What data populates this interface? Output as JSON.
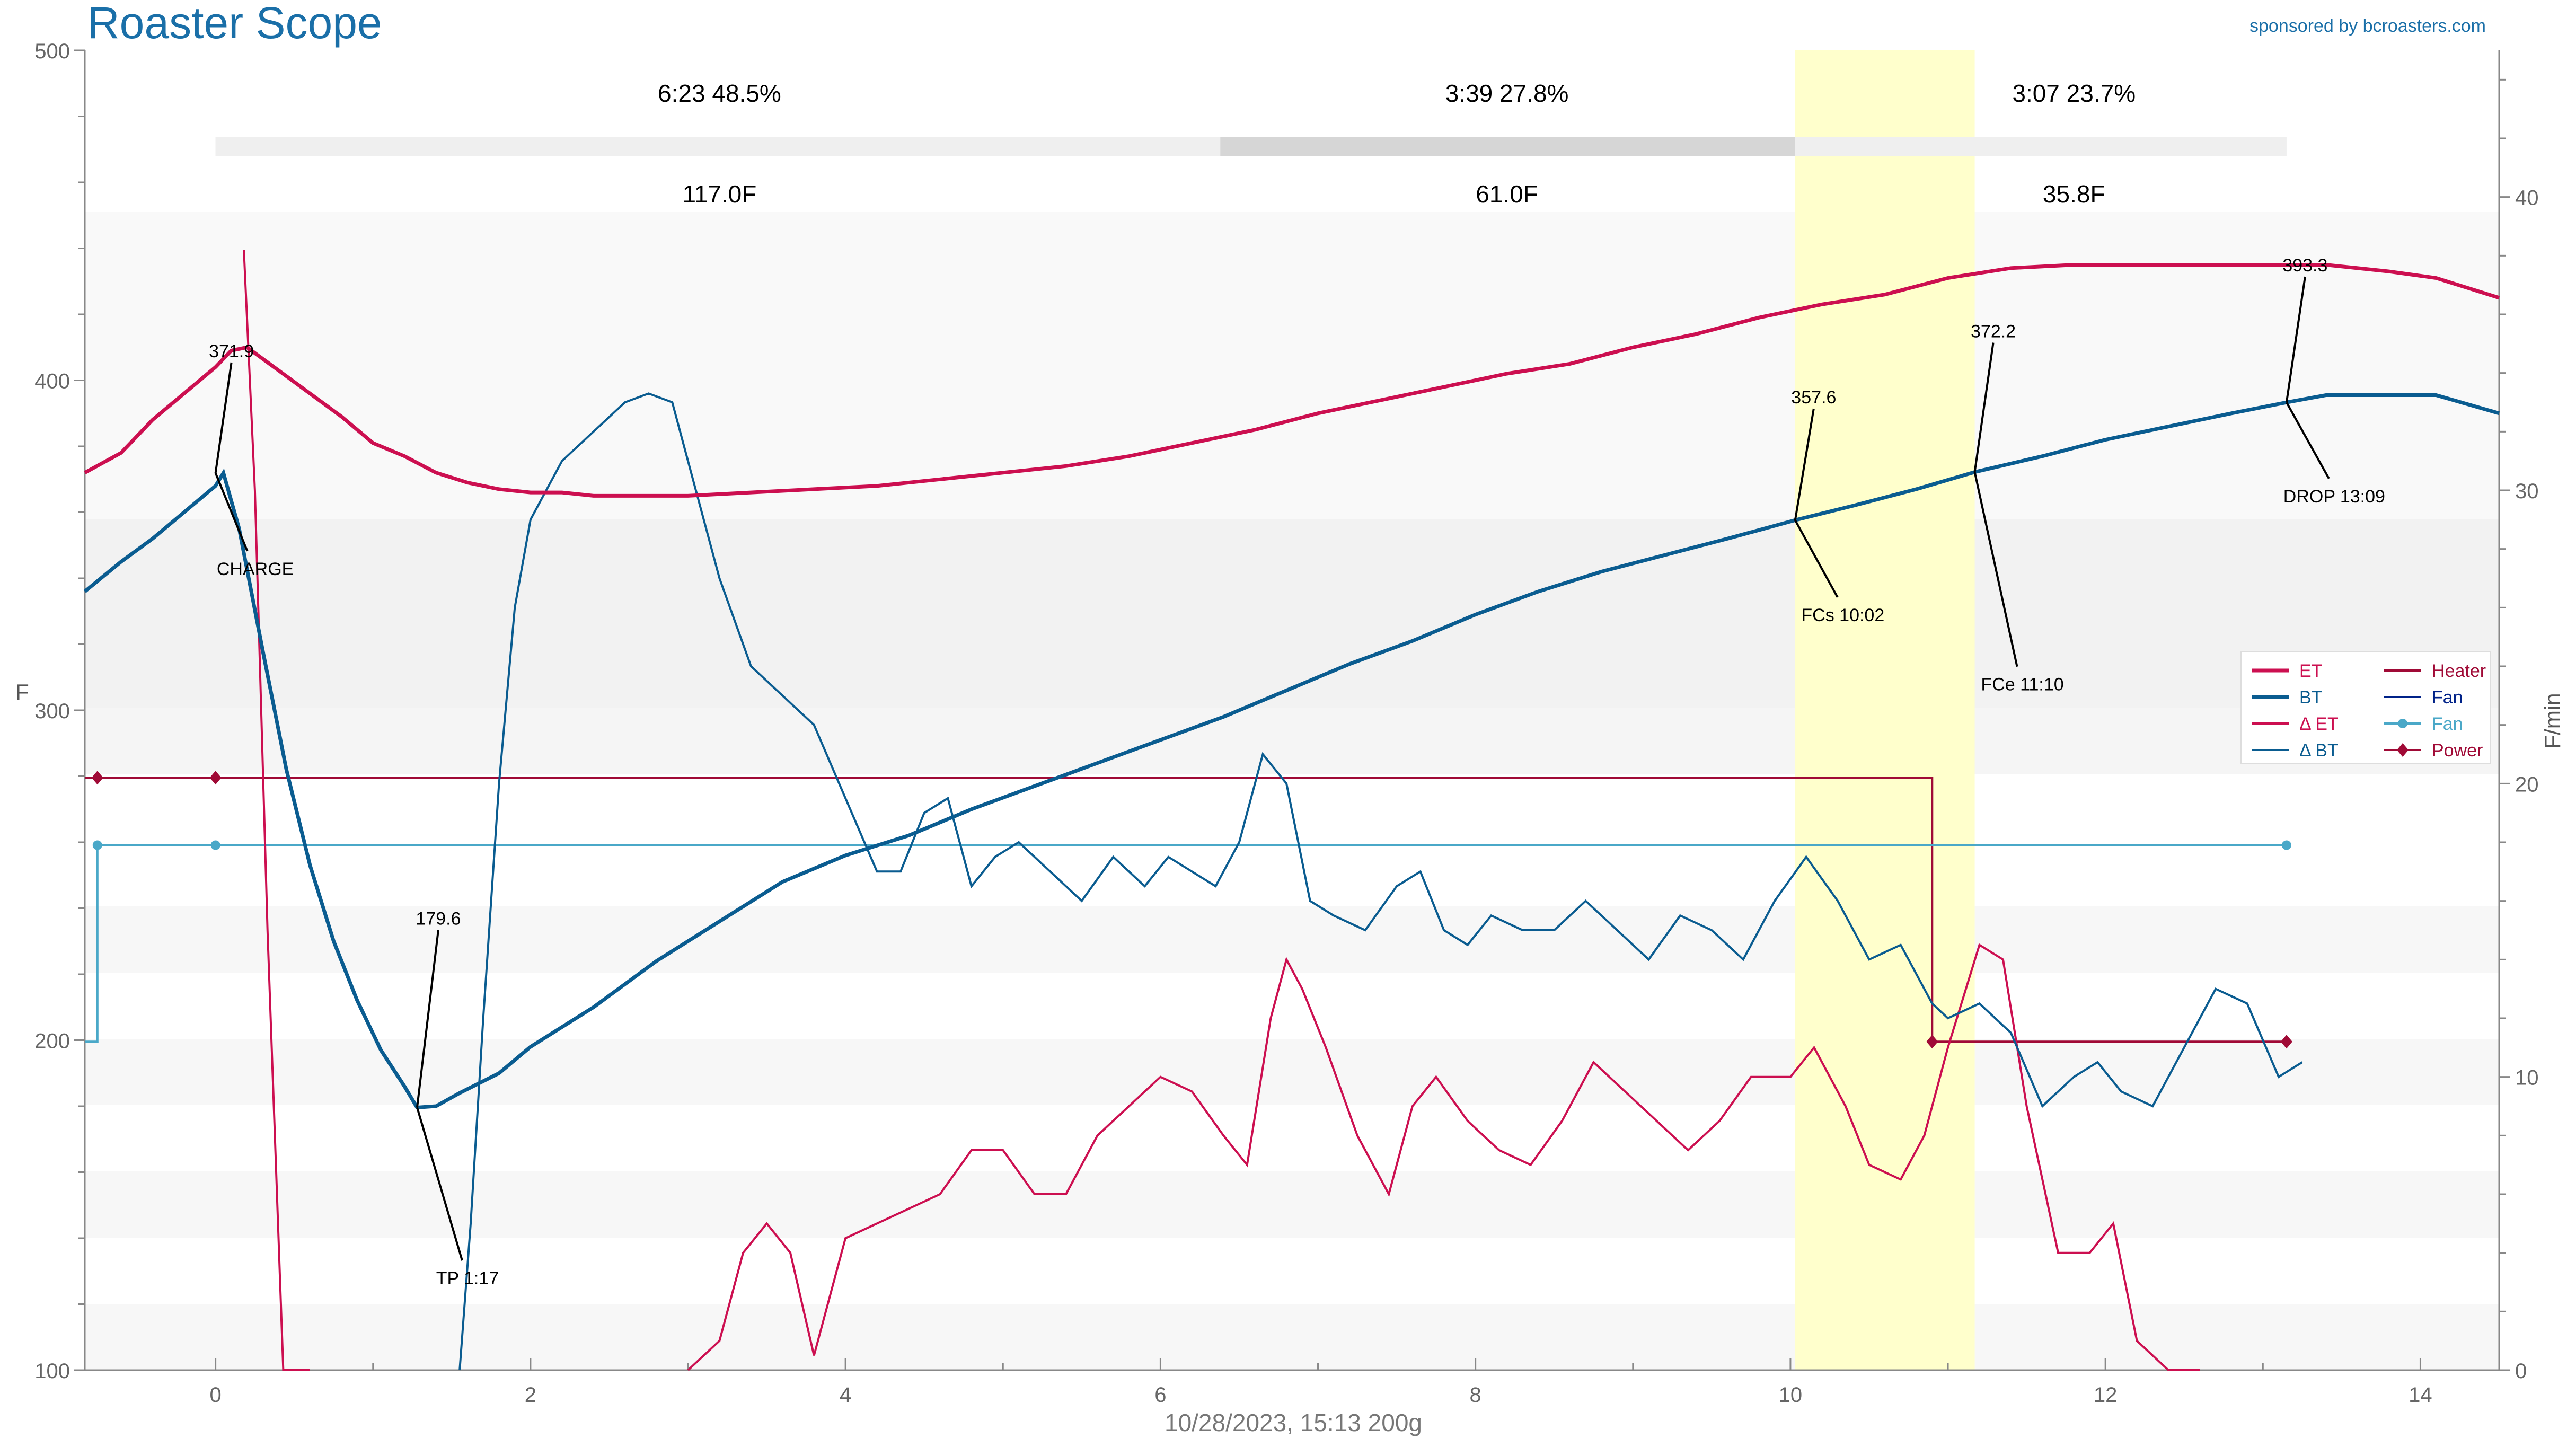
{
  "app": {
    "title": "Roaster Scope",
    "sponsor": "sponsored by bcroasters.com",
    "footer": "10/28/2023, 15:13   200g"
  },
  "chart_data": {
    "type": "line",
    "xlim": [
      -0.83,
      14.5
    ],
    "ylim_left": [
      100,
      500
    ],
    "ylim_right": [
      0,
      45
    ],
    "ylabel_left": "F",
    "ylabel_right": "F/min",
    "x_ticks": [
      0,
      2,
      4,
      6,
      8,
      10,
      12,
      14
    ],
    "y_ticks_left": [
      100,
      200,
      300,
      400,
      500
    ],
    "y_ticks_right": [
      0,
      10,
      20,
      30,
      40
    ],
    "colors": {
      "et": "#cc0f50",
      "bt": "#0a5c90",
      "fan": "#4aa8c8",
      "power": "#a00a36",
      "heater": "#a00a36",
      "fan_legend": "#002288",
      "title": "#1a6fa8",
      "highlight": "#ffffcc"
    },
    "phases": {
      "times": [
        "6:23  48.5%",
        "3:39  27.8%",
        "3:07  23.7%"
      ],
      "deltas": [
        "117.0F",
        "61.0F",
        "35.8F"
      ],
      "time_x": [
        3.2,
        8.2,
        11.8
      ],
      "bar_segments": [
        [
          0.0,
          6.38
        ],
        [
          6.38,
          10.03
        ],
        [
          10.03,
          13.15
        ]
      ],
      "bar_colors": [
        "#efefef",
        "#d6d6d6",
        "#efefef"
      ]
    },
    "highlight_band": [
      10.03,
      11.17
    ],
    "legend": [
      {
        "label": "ET",
        "color": "#cc0f50",
        "style": "thick"
      },
      {
        "label": "BT",
        "color": "#0a5c90",
        "style": "thick"
      },
      {
        "label": "Δ ET",
        "color": "#cc0f50",
        "style": "thin"
      },
      {
        "label": "Δ BT",
        "color": "#0a5c90",
        "style": "thin"
      },
      {
        "label": "Heater",
        "color": "#a00a36",
        "style": "thin"
      },
      {
        "label": "Fan",
        "color": "#002288",
        "style": "thin"
      },
      {
        "label": "Fan",
        "color": "#4aa8c8",
        "style": "dot"
      },
      {
        "label": "Power",
        "color": "#a00a36",
        "style": "diamond"
      }
    ],
    "annotations": [
      {
        "value": "371.9",
        "event": "CHARGE",
        "x": 0.0,
        "y": 371.9,
        "vx": 0.0,
        "vy": 407,
        "ex": 0.0,
        "ey": 341
      },
      {
        "value": "179.6",
        "event": "TP 1:17",
        "x": 1.28,
        "y": 179.6,
        "vx": 1.28,
        "vy": 235,
        "ex": 1.28,
        "ey": 126
      },
      {
        "value": "357.6",
        "event": "FCs 10:02",
        "x": 10.03,
        "y": 357.6,
        "vx": 10.03,
        "vy": 393,
        "ex": 10.03,
        "ey": 327
      },
      {
        "value": "372.2",
        "event": "FCe 11:10",
        "x": 11.17,
        "y": 372.2,
        "vx": 11.17,
        "vy": 413,
        "ex": 11.17,
        "ey": 306
      },
      {
        "value": "393.3",
        "event": "DROP 13:09",
        "x": 13.15,
        "y": 393.3,
        "vx": 13.15,
        "vy": 433,
        "ex": 13.15,
        "ey": 363
      }
    ],
    "series": {
      "et": [
        [
          -0.83,
          372
        ],
        [
          -0.6,
          378
        ],
        [
          -0.4,
          388
        ],
        [
          -0.2,
          396
        ],
        [
          0.0,
          404
        ],
        [
          0.1,
          409
        ],
        [
          0.2,
          410
        ],
        [
          0.4,
          403
        ],
        [
          0.6,
          396
        ],
        [
          0.8,
          389
        ],
        [
          1.0,
          381
        ],
        [
          1.2,
          377
        ],
        [
          1.4,
          372
        ],
        [
          1.6,
          369
        ],
        [
          1.8,
          367
        ],
        [
          2.0,
          366
        ],
        [
          2.2,
          366
        ],
        [
          2.4,
          365
        ],
        [
          2.6,
          365
        ],
        [
          2.8,
          365
        ],
        [
          3.0,
          365
        ],
        [
          3.4,
          366
        ],
        [
          3.8,
          367
        ],
        [
          4.2,
          368
        ],
        [
          4.6,
          370
        ],
        [
          5.0,
          372
        ],
        [
          5.4,
          374
        ],
        [
          5.8,
          377
        ],
        [
          6.2,
          381
        ],
        [
          6.6,
          385
        ],
        [
          7.0,
          390
        ],
        [
          7.4,
          394
        ],
        [
          7.8,
          398
        ],
        [
          8.2,
          402
        ],
        [
          8.6,
          405
        ],
        [
          9.0,
          410
        ],
        [
          9.4,
          414
        ],
        [
          9.8,
          419
        ],
        [
          10.2,
          423
        ],
        [
          10.6,
          426
        ],
        [
          11.0,
          431
        ],
        [
          11.4,
          434
        ],
        [
          11.8,
          435
        ],
        [
          12.2,
          435
        ],
        [
          12.6,
          435
        ],
        [
          13.0,
          435
        ],
        [
          13.4,
          435
        ],
        [
          13.8,
          433
        ],
        [
          14.1,
          431
        ],
        [
          14.3,
          428
        ],
        [
          14.5,
          425
        ]
      ],
      "bt": [
        [
          -0.83,
          336
        ],
        [
          -0.6,
          345
        ],
        [
          -0.4,
          352
        ],
        [
          -0.2,
          360
        ],
        [
          0.0,
          368
        ],
        [
          0.05,
          371.9
        ],
        [
          0.15,
          355
        ],
        [
          0.3,
          318
        ],
        [
          0.45,
          282
        ],
        [
          0.6,
          253
        ],
        [
          0.75,
          230
        ],
        [
          0.9,
          212
        ],
        [
          1.05,
          197
        ],
        [
          1.2,
          186
        ],
        [
          1.28,
          179.6
        ],
        [
          1.4,
          180
        ],
        [
          1.55,
          184
        ],
        [
          1.8,
          190
        ],
        [
          2.0,
          198
        ],
        [
          2.4,
          210
        ],
        [
          2.8,
          224
        ],
        [
          3.2,
          236
        ],
        [
          3.6,
          248
        ],
        [
          4.0,
          256
        ],
        [
          4.4,
          262
        ],
        [
          4.8,
          270
        ],
        [
          5.2,
          277
        ],
        [
          5.6,
          284
        ],
        [
          6.0,
          291
        ],
        [
          6.4,
          298
        ],
        [
          6.8,
          306
        ],
        [
          7.2,
          314
        ],
        [
          7.6,
          321
        ],
        [
          8.0,
          329
        ],
        [
          8.4,
          336
        ],
        [
          8.8,
          342
        ],
        [
          9.2,
          347
        ],
        [
          9.6,
          352
        ],
        [
          10.03,
          357.6
        ],
        [
          10.4,
          362
        ],
        [
          10.8,
          367
        ],
        [
          11.17,
          372.2
        ],
        [
          11.6,
          377
        ],
        [
          12.0,
          382
        ],
        [
          12.4,
          386
        ],
        [
          12.8,
          390
        ],
        [
          13.15,
          393.3
        ],
        [
          13.4,
          395.5
        ],
        [
          13.8,
          395.5
        ],
        [
          14.1,
          395.5
        ],
        [
          14.5,
          390
        ]
      ],
      "det": [
        [
          0.18,
          38.2
        ],
        [
          0.25,
          30
        ],
        [
          0.33,
          15
        ],
        [
          0.43,
          0
        ],
        [
          0.6,
          0
        ]
      ],
      "dbt": [
        [
          1.55,
          0
        ],
        [
          1.62,
          5
        ],
        [
          1.7,
          12
        ],
        [
          1.8,
          20
        ],
        [
          1.9,
          26
        ],
        [
          2.0,
          29
        ],
        [
          2.2,
          31
        ],
        [
          2.4,
          32
        ],
        [
          2.6,
          33
        ],
        [
          2.75,
          33.3
        ],
        [
          2.9,
          33
        ],
        [
          3.0,
          31
        ],
        [
          3.2,
          27
        ],
        [
          3.4,
          24
        ],
        [
          3.6,
          23
        ],
        [
          3.8,
          22
        ],
        [
          4.0,
          19.5
        ],
        [
          4.2,
          17
        ],
        [
          4.35,
          17
        ],
        [
          4.5,
          19
        ],
        [
          4.65,
          19.5
        ],
        [
          4.8,
          16.5
        ],
        [
          4.95,
          17.5
        ],
        [
          5.1,
          18
        ],
        [
          5.3,
          17
        ],
        [
          5.5,
          16
        ],
        [
          5.7,
          17.5
        ],
        [
          5.9,
          16.5
        ],
        [
          6.05,
          17.5
        ],
        [
          6.2,
          17
        ],
        [
          6.35,
          16.5
        ],
        [
          6.5,
          18
        ],
        [
          6.65,
          21
        ],
        [
          6.8,
          20
        ],
        [
          6.95,
          16
        ],
        [
          7.1,
          15.5
        ],
        [
          7.3,
          15
        ],
        [
          7.5,
          16.5
        ],
        [
          7.65,
          17
        ],
        [
          7.8,
          15
        ],
        [
          7.95,
          14.5
        ],
        [
          8.1,
          15.5
        ],
        [
          8.3,
          15
        ],
        [
          8.5,
          15
        ],
        [
          8.7,
          16
        ],
        [
          8.9,
          15
        ],
        [
          9.1,
          14
        ],
        [
          9.3,
          15.5
        ],
        [
          9.5,
          15
        ],
        [
          9.7,
          14
        ],
        [
          9.9,
          16
        ],
        [
          10.1,
          17.5
        ],
        [
          10.3,
          16
        ],
        [
          10.5,
          14
        ],
        [
          10.7,
          14.5
        ],
        [
          10.9,
          12.5
        ],
        [
          11.0,
          12
        ],
        [
          11.2,
          12.5
        ],
        [
          11.4,
          11.5
        ],
        [
          11.6,
          9
        ],
        [
          11.8,
          10
        ],
        [
          11.95,
          10.5
        ],
        [
          12.1,
          9.5
        ],
        [
          12.3,
          9
        ],
        [
          12.5,
          11
        ],
        [
          12.7,
          13
        ],
        [
          12.9,
          12.5
        ],
        [
          13.1,
          10
        ],
        [
          13.25,
          10.5
        ]
      ],
      "det2": [
        [
          3.0,
          0
        ],
        [
          3.2,
          1
        ],
        [
          3.35,
          4
        ],
        [
          3.5,
          5
        ],
        [
          3.65,
          4
        ],
        [
          3.8,
          0.5
        ],
        [
          4.0,
          4.5
        ],
        [
          4.2,
          5
        ],
        [
          4.4,
          5.5
        ],
        [
          4.6,
          6
        ],
        [
          4.8,
          7.5
        ],
        [
          5.0,
          7.5
        ],
        [
          5.2,
          6
        ],
        [
          5.4,
          6
        ],
        [
          5.6,
          8
        ],
        [
          5.8,
          9
        ],
        [
          6.0,
          10
        ],
        [
          6.2,
          9.5
        ],
        [
          6.4,
          8
        ],
        [
          6.55,
          7
        ],
        [
          6.7,
          12
        ],
        [
          6.8,
          14
        ],
        [
          6.9,
          13
        ],
        [
          7.05,
          11
        ],
        [
          7.25,
          8
        ],
        [
          7.45,
          6
        ],
        [
          7.6,
          9
        ],
        [
          7.75,
          10
        ],
        [
          7.95,
          8.5
        ],
        [
          8.15,
          7.5
        ],
        [
          8.35,
          7
        ],
        [
          8.55,
          8.5
        ],
        [
          8.75,
          10.5
        ],
        [
          8.95,
          9.5
        ],
        [
          9.15,
          8.5
        ],
        [
          9.35,
          7.5
        ],
        [
          9.55,
          8.5
        ],
        [
          9.75,
          10
        ],
        [
          10.0,
          10
        ],
        [
          10.15,
          11
        ],
        [
          10.35,
          9
        ],
        [
          10.5,
          7
        ],
        [
          10.7,
          6.5
        ],
        [
          10.85,
          8
        ],
        [
          11.0,
          11
        ],
        [
          11.2,
          14.5
        ],
        [
          11.35,
          14
        ],
        [
          11.5,
          9
        ],
        [
          11.7,
          4
        ],
        [
          11.9,
          4
        ],
        [
          12.05,
          5
        ],
        [
          12.2,
          1
        ],
        [
          12.4,
          0
        ],
        [
          12.6,
          0
        ]
      ],
      "heater": [
        [
          -0.83,
          20.2
        ],
        [
          10.9,
          20.2
        ],
        [
          10.9,
          11.2
        ],
        [
          13.15,
          11.2
        ]
      ],
      "fan": [
        [
          -0.83,
          11.2
        ],
        [
          -0.75,
          11.2
        ],
        [
          -0.75,
          17.9
        ],
        [
          13.15,
          17.9
        ]
      ],
      "power_markers": [
        [
          -0.75,
          20.2
        ],
        [
          0.0,
          20.2
        ],
        [
          10.9,
          11.2
        ],
        [
          13.15,
          11.2
        ]
      ],
      "fan_markers": [
        [
          -0.75,
          17.9
        ],
        [
          0.0,
          17.9
        ],
        [
          13.15,
          17.9
        ]
      ]
    }
  }
}
